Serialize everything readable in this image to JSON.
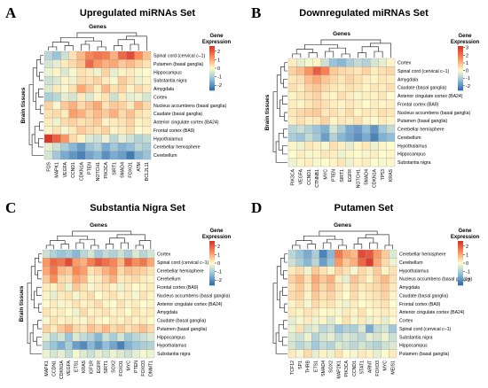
{
  "legend_title_lines": [
    "Gene",
    "Expression"
  ],
  "chart_data": [
    {
      "type": "heatmap",
      "panel_label": "A",
      "title": "Upregulated miRNAs Set",
      "xlabel": "Genes",
      "ylabel": "Brain tissues",
      "columns": [
        "FOS",
        "MAPK1",
        "VEGFA",
        "CCND1",
        "CDKN1A",
        "PTEN",
        "NOTCH1",
        "PIK3CA",
        "SIRT1",
        "SMAD4",
        "FOXO1",
        "ATM",
        "BCL2L11"
      ],
      "rows": [
        "Spinal cord (cervical c–1)",
        "Putamen (basal ganglia)",
        "Hippocampus",
        "Substantia nigra",
        "Amygdala",
        "Cortex",
        "Nucleus accumbens (basal ganglia)",
        "Caudate (basal ganglia)",
        "Anterior cingulate cortex (BA24)",
        "Frontal cortex (BA9)",
        "Hypothalamus",
        "Cerebellar hemisphere",
        "Cerebellum"
      ],
      "legend_ticks": [
        2,
        1,
        0,
        -1,
        -2
      ],
      "value_range": [
        -2.6,
        2.6
      ],
      "values": [
        [
          -0.8,
          -1.2,
          -0.6,
          0.3,
          0.8,
          1.4,
          1.6,
          1.5,
          0.9,
          1.8,
          2.2,
          1.3,
          0.7
        ],
        [
          -0.5,
          -0.3,
          0.2,
          0.4,
          0.7,
          1.8,
          1.2,
          0.9,
          1.0,
          0.6,
          0.8,
          0.5,
          0.3
        ],
        [
          -0.2,
          0.1,
          -0.4,
          -0.1,
          0.3,
          0.2,
          -0.2,
          0.5,
          -0.3,
          0.1,
          0.2,
          -0.1,
          0.0
        ],
        [
          -0.6,
          -0.4,
          0.1,
          -0.2,
          0.4,
          0.3,
          0.5,
          0.2,
          -0.1,
          0.6,
          0.3,
          -0.2,
          0.1
        ],
        [
          -0.4,
          0.2,
          -0.1,
          0.3,
          1.0,
          0.6,
          0.2,
          0.8,
          0.3,
          0.5,
          0.1,
          0.4,
          0.2
        ],
        [
          -1.0,
          -0.8,
          -0.3,
          -0.5,
          0.2,
          -0.4,
          0.1,
          0.3,
          -0.6,
          0.2,
          -0.3,
          -0.2,
          -0.5
        ],
        [
          0.5,
          -0.1,
          0.6,
          0.9,
          0.4,
          0.7,
          1.0,
          0.3,
          0.6,
          0.5,
          0.2,
          0.8,
          0.4
        ],
        [
          0.3,
          0.4,
          0.2,
          1.1,
          0.9,
          0.5,
          0.8,
          0.6,
          0.9,
          0.4,
          0.7,
          0.3,
          0.2
        ],
        [
          0.2,
          -0.2,
          0.4,
          0.5,
          0.3,
          0.4,
          0.6,
          0.1,
          0.2,
          0.3,
          0.5,
          0.1,
          0.2
        ],
        [
          0.1,
          0.3,
          -0.1,
          0.2,
          0.6,
          0.4,
          0.3,
          0.5,
          0.1,
          0.2,
          0.4,
          0.0,
          0.1
        ],
        [
          2.5,
          1.9,
          1.2,
          0.4,
          0.1,
          -0.4,
          -0.6,
          -0.2,
          -0.8,
          -0.3,
          -0.6,
          -0.9,
          -0.7
        ],
        [
          -0.3,
          -0.6,
          -1.0,
          -1.4,
          -1.8,
          -1.2,
          -0.9,
          -1.6,
          -1.1,
          -1.5,
          -1.3,
          -0.8,
          -1.0
        ],
        [
          -0.5,
          -1.1,
          -1.6,
          -1.9,
          -2.2,
          -1.7,
          -1.4,
          -2.0,
          -1.6,
          -1.8,
          -2.3,
          -1.5,
          -1.2
        ]
      ]
    },
    {
      "type": "heatmap",
      "panel_label": "B",
      "title": "Downregulated miRNAs Set",
      "xlabel": "Genes",
      "ylabel": "Brain tissues",
      "columns": [
        "PIK3CA",
        "VEGFA",
        "CCND1",
        "CTNNB1",
        "MYC",
        "PTEN",
        "SIRT1",
        "EGFR",
        "NOTCH1",
        "SMAD4",
        "CDKN1A",
        "TP53",
        "KRAS"
      ],
      "rows": [
        "Cortex",
        "Spinal cord (cervical c–1)",
        "Amygdala",
        "Caudate (basal ganglia)",
        "Anterior cingulate cortex (BA24)",
        "Frontal cortex (BA9)",
        "Nucleus accumbens (basal ganglia)",
        "Putamen (basal ganglia)",
        "Cerebellar hemisphere",
        "Cerebellum",
        "Hypothalamus",
        "Hippocampus",
        "Substantia nigra"
      ],
      "legend_ticks": [
        3,
        2,
        1,
        0,
        -1,
        -2
      ],
      "value_range": [
        -2.6,
        3.2
      ],
      "values": [
        [
          0.2,
          -0.3,
          -0.1,
          0.1,
          -0.6,
          -1.2,
          -1.4,
          -1.0,
          -0.7,
          -0.9,
          -0.5,
          -0.3,
          0.1
        ],
        [
          0.6,
          0.9,
          1.5,
          2.4,
          1.8,
          0.7,
          0.5,
          0.4,
          0.3,
          0.6,
          0.2,
          0.4,
          0.5
        ],
        [
          0.3,
          0.4,
          0.9,
          1.2,
          0.8,
          0.5,
          0.3,
          0.6,
          0.4,
          0.2,
          0.1,
          0.3,
          0.2
        ],
        [
          0.4,
          0.2,
          0.6,
          0.8,
          0.5,
          0.3,
          0.2,
          0.4,
          0.3,
          0.1,
          0.3,
          0.2,
          0.4
        ],
        [
          0.1,
          0.3,
          0.4,
          0.6,
          0.2,
          0.1,
          0.4,
          0.2,
          -0.1,
          0.2,
          0.1,
          0.3,
          0.0
        ],
        [
          0.2,
          0.1,
          0.3,
          0.5,
          0.4,
          0.2,
          0.1,
          0.3,
          0.2,
          0.0,
          0.2,
          0.1,
          0.2
        ],
        [
          0.3,
          0.5,
          0.6,
          0.7,
          0.3,
          0.4,
          0.2,
          0.5,
          0.1,
          0.3,
          0.2,
          0.4,
          0.3
        ],
        [
          0.2,
          0.4,
          0.2,
          0.3,
          0.6,
          0.1,
          0.3,
          0.2,
          0.4,
          0.1,
          0.0,
          0.2,
          0.1
        ],
        [
          -0.8,
          -0.6,
          -0.9,
          -1.2,
          -1.5,
          -0.5,
          -1.0,
          -1.6,
          -1.8,
          -1.3,
          -1.9,
          -1.1,
          -0.7
        ],
        [
          -1.0,
          -1.2,
          -0.7,
          -1.1,
          -1.8,
          -0.9,
          -1.4,
          -1.7,
          -2.0,
          -1.6,
          -2.2,
          -1.5,
          -1.3
        ],
        [
          0.1,
          -0.2,
          0.3,
          0.2,
          -0.1,
          0.4,
          0.2,
          -0.3,
          0.1,
          0.3,
          -0.2,
          0.1,
          0.0
        ],
        [
          0.0,
          0.2,
          -0.1,
          0.1,
          0.3,
          0.2,
          -0.2,
          0.1,
          0.0,
          -0.1,
          0.2,
          0.0,
          0.1
        ],
        [
          -0.2,
          0.1,
          0.2,
          -0.1,
          0.0,
          0.1,
          0.3,
          -0.2,
          0.1,
          0.2,
          0.0,
          -0.1,
          0.1
        ]
      ]
    },
    {
      "type": "heatmap",
      "panel_label": "C",
      "title": "Substantia Nigra Set",
      "xlabel": "Genes",
      "ylabel": "Brain tissues",
      "columns": [
        "MAPK1",
        "CCDN1",
        "CDKN1A",
        "VEGFA",
        "ETS1",
        "KRAS",
        "IGF1R",
        "EGFR",
        "SIRT1",
        "SOX2",
        "FOXO1",
        "MYC",
        "PTEN",
        "FOXO3",
        "DNMT1"
      ],
      "rows": [
        "Cortex",
        "Spinal cord (cervical c–1)",
        "Cerebellar hemisphere",
        "Cerebellum",
        "Frontal cortex (BA9)",
        "Nucleus accumbens (basal ganglia)",
        "Anterior cingulate cortex (BA24)",
        "Amygdala",
        "Caudate (basal ganglia)",
        "Putamen (basal ganglia)",
        "Hippocampus",
        "Hypothalamus",
        "Substantia nigra"
      ],
      "legend_ticks": [
        2,
        1,
        0,
        -1,
        -2
      ],
      "value_range": [
        -2.6,
        2.6
      ],
      "values": [
        [
          -0.6,
          -0.9,
          -1.2,
          -1.0,
          -1.4,
          -0.8,
          -0.5,
          -1.1,
          -0.7,
          -0.9,
          -0.6,
          -1.0,
          -0.4,
          -0.8,
          -0.5
        ],
        [
          1.2,
          1.8,
          1.6,
          2.2,
          1.1,
          0.9,
          1.5,
          2.0,
          1.7,
          1.4,
          0.8,
          1.9,
          1.3,
          1.6,
          1.0
        ],
        [
          1.0,
          1.6,
          0.8,
          0.6,
          1.4,
          1.1,
          0.3,
          0.5,
          0.9,
          1.2,
          0.4,
          0.7,
          0.6,
          0.5,
          0.3
        ],
        [
          0.6,
          1.3,
          0.4,
          0.3,
          1.0,
          0.8,
          0.1,
          0.2,
          0.5,
          0.9,
          0.2,
          0.3,
          0.4,
          0.2,
          0.1
        ],
        [
          0.2,
          0.1,
          0.4,
          -0.2,
          0.6,
          0.3,
          -0.1,
          0.2,
          0.3,
          0.1,
          -0.2,
          0.2,
          0.0,
          0.1,
          0.2
        ],
        [
          0.1,
          -0.3,
          0.2,
          0.3,
          -0.1,
          0.2,
          0.4,
          0.0,
          0.2,
          0.3,
          0.1,
          0.2,
          -0.1,
          0.3,
          0.1
        ],
        [
          0.0,
          0.2,
          -0.1,
          0.1,
          0.3,
          0.1,
          0.2,
          0.4,
          0.1,
          0.0,
          0.3,
          0.1,
          0.2,
          0.0,
          0.1
        ],
        [
          0.3,
          0.1,
          0.2,
          0.0,
          -0.2,
          0.4,
          0.1,
          0.2,
          0.3,
          0.1,
          0.2,
          0.0,
          0.3,
          0.1,
          0.2
        ],
        [
          -0.1,
          0.3,
          0.1,
          0.2,
          0.1,
          -0.1,
          0.3,
          0.1,
          0.0,
          0.2,
          0.1,
          0.3,
          0.1,
          0.2,
          0.0
        ],
        [
          0.5,
          0.2,
          0.6,
          0.9,
          0.4,
          0.3,
          0.7,
          0.5,
          0.8,
          0.4,
          0.6,
          0.3,
          0.5,
          0.7,
          0.4
        ],
        [
          -0.3,
          -0.8,
          -0.5,
          -1.2,
          -0.4,
          -0.7,
          -0.9,
          -1.4,
          -0.6,
          -1.0,
          -0.5,
          -1.1,
          -0.8,
          -0.6,
          -0.4
        ],
        [
          -0.8,
          -1.2,
          -1.6,
          -1.0,
          -1.8,
          -2.1,
          -1.4,
          -1.9,
          -1.3,
          -1.7,
          -2.2,
          -1.5,
          -1.2,
          -1.0,
          -0.9
        ],
        [
          -0.2,
          -0.5,
          -0.3,
          -0.7,
          -0.1,
          -0.4,
          -0.6,
          -0.3,
          -0.5,
          -0.2,
          -0.4,
          -0.6,
          -0.3,
          -0.1,
          -0.2
        ]
      ]
    },
    {
      "type": "heatmap",
      "panel_label": "D",
      "title": "Putamen Set",
      "xlabel": "Genes",
      "ylabel": "",
      "columns": [
        "TCF12",
        "SP1",
        "THRB",
        "ETS1",
        "SMAD4",
        "SOX2",
        "MAP2K1",
        "PIK3CA",
        "CCND1",
        "STAT1",
        "ARNT",
        "FOXO3",
        "MYC",
        "MEIS1"
      ],
      "rows": [
        "Cerebellar hemisphere",
        "Cerebellum",
        "Hypothalamus",
        "Nucleus accumbens (basal ganglia)",
        "Amygdala",
        "Caudate (basal ganglia)",
        "Frontal cortex (BA9)",
        "Anterior cingulate cortex (BA24)",
        "Cortex",
        "Spinal cord (cervical c–1)",
        "Substantia nigra",
        "Hippocampus",
        "Putamen (basal ganglia)"
      ],
      "legend_ticks": [
        2,
        1,
        0,
        -1,
        -2
      ],
      "value_range": [
        -2.6,
        2.6
      ],
      "values": [
        [
          -0.8,
          -1.2,
          -1.6,
          -1.0,
          -2.2,
          -1.4,
          1.6,
          1.0,
          0.8,
          2.2,
          2.0,
          1.2,
          0.6,
          -0.4
        ],
        [
          -0.6,
          -1.0,
          -1.4,
          -0.8,
          -1.8,
          -1.2,
          1.2,
          0.6,
          0.9,
          1.8,
          2.4,
          1.0,
          0.4,
          -0.2
        ],
        [
          0.2,
          0.4,
          -0.2,
          0.6,
          0.3,
          0.1,
          0.5,
          0.3,
          -0.1,
          0.4,
          0.2,
          0.6,
          0.1,
          0.3
        ],
        [
          0.5,
          0.8,
          0.3,
          1.0,
          0.6,
          0.9,
          0.2,
          -0.3,
          0.7,
          0.4,
          0.1,
          0.5,
          0.8,
          0.3
        ],
        [
          0.3,
          0.6,
          0.2,
          0.8,
          0.4,
          0.7,
          0.3,
          0.1,
          0.5,
          0.2,
          0.3,
          0.4,
          0.6,
          0.2
        ],
        [
          0.4,
          0.5,
          0.1,
          0.6,
          0.3,
          0.5,
          0.2,
          0.0,
          0.4,
          0.1,
          0.2,
          0.3,
          0.5,
          0.1
        ],
        [
          0.1,
          0.3,
          -0.1,
          0.4,
          0.2,
          0.3,
          0.1,
          -0.2,
          0.2,
          0.0,
          0.1,
          0.2,
          0.3,
          0.0
        ],
        [
          0.2,
          0.1,
          0.3,
          0.2,
          0.0,
          0.1,
          -0.1,
          0.2,
          0.1,
          0.3,
          0.0,
          0.1,
          0.2,
          0.1
        ],
        [
          -0.3,
          -0.1,
          0.2,
          -0.2,
          0.1,
          -0.4,
          0.0,
          0.3,
          -0.1,
          0.2,
          -0.2,
          0.1,
          -0.3,
          0.0
        ],
        [
          -0.2,
          0.3,
          -0.5,
          -0.3,
          -0.8,
          -0.6,
          -1.2,
          -0.9,
          -1.0,
          -0.4,
          -1.6,
          -0.7,
          -0.5,
          -1.1
        ],
        [
          -0.4,
          -0.6,
          -0.2,
          -0.9,
          -0.5,
          -0.3,
          -0.7,
          -0.4,
          -0.6,
          -0.8,
          -0.3,
          -0.5,
          -0.2,
          -0.6
        ],
        [
          -0.5,
          -0.8,
          -0.6,
          -1.1,
          -0.7,
          -0.9,
          -0.4,
          -0.6,
          -0.8,
          -0.5,
          -0.7,
          -0.9,
          -0.6,
          -0.4
        ],
        [
          0.2,
          -0.1,
          0.4,
          -0.3,
          0.1,
          -0.2,
          0.3,
          0.0,
          -0.1,
          0.2,
          0.1,
          -0.3,
          0.0,
          0.2
        ]
      ]
    }
  ]
}
